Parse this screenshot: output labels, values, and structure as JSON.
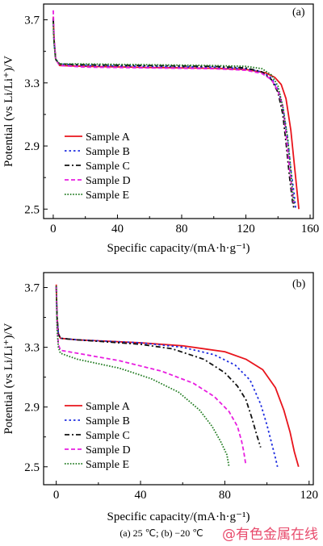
{
  "caption": "(a) 25 ℃; (b) −20 ℃",
  "watermark": "@有色金属在线",
  "chart_data": [
    {
      "type": "line",
      "panel_label": "(a)",
      "xlabel": "Specific capacity/(mA·h·g⁻¹)",
      "ylabel": "Potential (vs Li/Li⁺)/V",
      "xlim": [
        -6,
        162
      ],
      "ylim": [
        2.44,
        3.8
      ],
      "xticks": [
        0,
        40,
        80,
        120,
        160
      ],
      "yticks": [
        2.5,
        2.9,
        3.3,
        3.7
      ],
      "xtick_labels": [
        "0",
        "40",
        "80",
        "120",
        "160"
      ],
      "ytick_labels": [
        "2.5",
        "2.9",
        "3.3",
        "3.7"
      ],
      "legend_position": "lower-left",
      "series": [
        {
          "name": "Sample A",
          "color": "#e8141c",
          "dash": "solid",
          "points": [
            [
              0,
              3.72
            ],
            [
              0.5,
              3.58
            ],
            [
              1.5,
              3.45
            ],
            [
              4,
              3.41
            ],
            [
              20,
              3.405
            ],
            [
              60,
              3.398
            ],
            [
              100,
              3.393
            ],
            [
              120,
              3.385
            ],
            [
              132,
              3.365
            ],
            [
              138,
              3.335
            ],
            [
              142,
              3.29
            ],
            [
              145,
              3.2
            ],
            [
              148,
              3.0
            ],
            [
              150,
              2.8
            ],
            [
              152,
              2.6
            ],
            [
              153,
              2.5
            ]
          ]
        },
        {
          "name": "Sample B",
          "color": "#1f2ee0",
          "dash": "dot",
          "points": [
            [
              0,
              3.7
            ],
            [
              0.5,
              3.56
            ],
            [
              1.5,
              3.45
            ],
            [
              4,
              3.42
            ],
            [
              20,
              3.41
            ],
            [
              60,
              3.405
            ],
            [
              100,
              3.4
            ],
            [
              120,
              3.39
            ],
            [
              130,
              3.37
            ],
            [
              136,
              3.33
            ],
            [
              140,
              3.26
            ],
            [
              143,
              3.15
            ],
            [
              146,
              2.95
            ],
            [
              148,
              2.75
            ],
            [
              150,
              2.6
            ],
            [
              151,
              2.5
            ]
          ]
        },
        {
          "name": "Sample C",
          "color": "#111111",
          "dash": "dashdot",
          "points": [
            [
              0,
              3.71
            ],
            [
              0.5,
              3.57
            ],
            [
              1.5,
              3.45
            ],
            [
              4,
              3.42
            ],
            [
              20,
              3.415
            ],
            [
              60,
              3.41
            ],
            [
              100,
              3.405
            ],
            [
              120,
              3.395
            ],
            [
              130,
              3.37
            ],
            [
              136,
              3.32
            ],
            [
              140,
              3.24
            ],
            [
              143,
              3.1
            ],
            [
              145,
              2.92
            ],
            [
              147,
              2.72
            ],
            [
              149,
              2.55
            ],
            [
              150,
              2.5
            ]
          ]
        },
        {
          "name": "Sample D",
          "color": "#e81ee0",
          "dash": "dash",
          "points": [
            [
              0,
              3.76
            ],
            [
              0.5,
              3.6
            ],
            [
              1.5,
              3.45
            ],
            [
              4,
              3.41
            ],
            [
              20,
              3.4
            ],
            [
              60,
              3.395
            ],
            [
              100,
              3.39
            ],
            [
              120,
              3.38
            ],
            [
              130,
              3.36
            ],
            [
              136,
              3.32
            ],
            [
              140,
              3.25
            ],
            [
              143,
              3.15
            ],
            [
              145,
              2.98
            ],
            [
              147,
              2.78
            ],
            [
              149,
              2.6
            ],
            [
              150,
              2.52
            ]
          ]
        },
        {
          "name": "Sample E",
          "color": "#1f7a1f",
          "dash": "densedot",
          "points": [
            [
              0,
              3.68
            ],
            [
              0.5,
              3.55
            ],
            [
              1.5,
              3.45
            ],
            [
              4,
              3.42
            ],
            [
              20,
              3.42
            ],
            [
              60,
              3.415
            ],
            [
              100,
              3.41
            ],
            [
              120,
              3.405
            ],
            [
              130,
              3.39
            ],
            [
              136,
              3.35
            ],
            [
              140,
              3.28
            ],
            [
              143,
              3.15
            ],
            [
              146,
              2.95
            ],
            [
              148,
              2.75
            ],
            [
              149,
              2.62
            ],
            [
              150,
              2.53
            ]
          ]
        }
      ]
    },
    {
      "type": "line",
      "panel_label": "(b)",
      "xlabel": "Specific capacity/(mA·h·g⁻¹)",
      "ylabel": "Potential (vs Li/Li⁺)/V",
      "xlim": [
        -6,
        122
      ],
      "ylim": [
        2.38,
        3.8
      ],
      "xticks": [
        0,
        40,
        80,
        120
      ],
      "yticks": [
        2.5,
        2.9,
        3.3,
        3.7
      ],
      "xtick_labels": [
        "0",
        "40",
        "80",
        "120"
      ],
      "ytick_labels": [
        "2.5",
        "2.9",
        "3.3",
        "3.7"
      ],
      "legend_position": "lower-left",
      "series": [
        {
          "name": "Sample A",
          "color": "#e8141c",
          "dash": "solid",
          "points": [
            [
              0,
              3.72
            ],
            [
              0.4,
              3.5
            ],
            [
              1,
              3.39
            ],
            [
              2,
              3.36
            ],
            [
              10,
              3.35
            ],
            [
              40,
              3.33
            ],
            [
              60,
              3.31
            ],
            [
              80,
              3.27
            ],
            [
              90,
              3.22
            ],
            [
              98,
              3.15
            ],
            [
              104,
              3.03
            ],
            [
              108,
              2.88
            ],
            [
              111,
              2.73
            ],
            [
              113,
              2.6
            ],
            [
              115,
              2.5
            ]
          ]
        },
        {
          "name": "Sample B",
          "color": "#1f2ee0",
          "dash": "dot",
          "points": [
            [
              0,
              3.71
            ],
            [
              0.4,
              3.5
            ],
            [
              1,
              3.39
            ],
            [
              2,
              3.36
            ],
            [
              10,
              3.35
            ],
            [
              40,
              3.33
            ],
            [
              60,
              3.3
            ],
            [
              75,
              3.25
            ],
            [
              85,
              3.18
            ],
            [
              92,
              3.08
            ],
            [
              97,
              2.92
            ],
            [
              100,
              2.78
            ],
            [
              102,
              2.67
            ],
            [
              104,
              2.56
            ],
            [
              105,
              2.5
            ]
          ]
        },
        {
          "name": "Sample C",
          "color": "#111111",
          "dash": "dashdot",
          "points": [
            [
              0,
              3.7
            ],
            [
              0.4,
              3.5
            ],
            [
              1,
              3.39
            ],
            [
              2,
              3.36
            ],
            [
              10,
              3.35
            ],
            [
              40,
              3.32
            ],
            [
              55,
              3.29
            ],
            [
              70,
              3.22
            ],
            [
              80,
              3.13
            ],
            [
              86,
              3.04
            ],
            [
              90,
              2.95
            ],
            [
              93,
              2.82
            ],
            [
              95,
              2.72
            ],
            [
              97,
              2.63
            ]
          ]
        },
        {
          "name": "Sample D",
          "color": "#e81ee0",
          "dash": "dash",
          "points": [
            [
              0,
              3.7
            ],
            [
              0.4,
              3.45
            ],
            [
              1,
              3.32
            ],
            [
              2,
              3.28
            ],
            [
              10,
              3.26
            ],
            [
              30,
              3.21
            ],
            [
              50,
              3.14
            ],
            [
              65,
              3.06
            ],
            [
              75,
              2.97
            ],
            [
              82,
              2.87
            ],
            [
              86,
              2.77
            ],
            [
              88,
              2.67
            ],
            [
              89,
              2.6
            ],
            [
              90,
              2.51
            ]
          ]
        },
        {
          "name": "Sample E",
          "color": "#1f7a1f",
          "dash": "densedot",
          "points": [
            [
              0,
              3.71
            ],
            [
              0.4,
              3.42
            ],
            [
              1,
              3.3
            ],
            [
              2,
              3.26
            ],
            [
              10,
              3.22
            ],
            [
              30,
              3.16
            ],
            [
              45,
              3.09
            ],
            [
              58,
              3.0
            ],
            [
              68,
              2.88
            ],
            [
              74,
              2.77
            ],
            [
              78,
              2.67
            ],
            [
              81,
              2.58
            ],
            [
              82,
              2.5
            ]
          ]
        }
      ]
    }
  ]
}
